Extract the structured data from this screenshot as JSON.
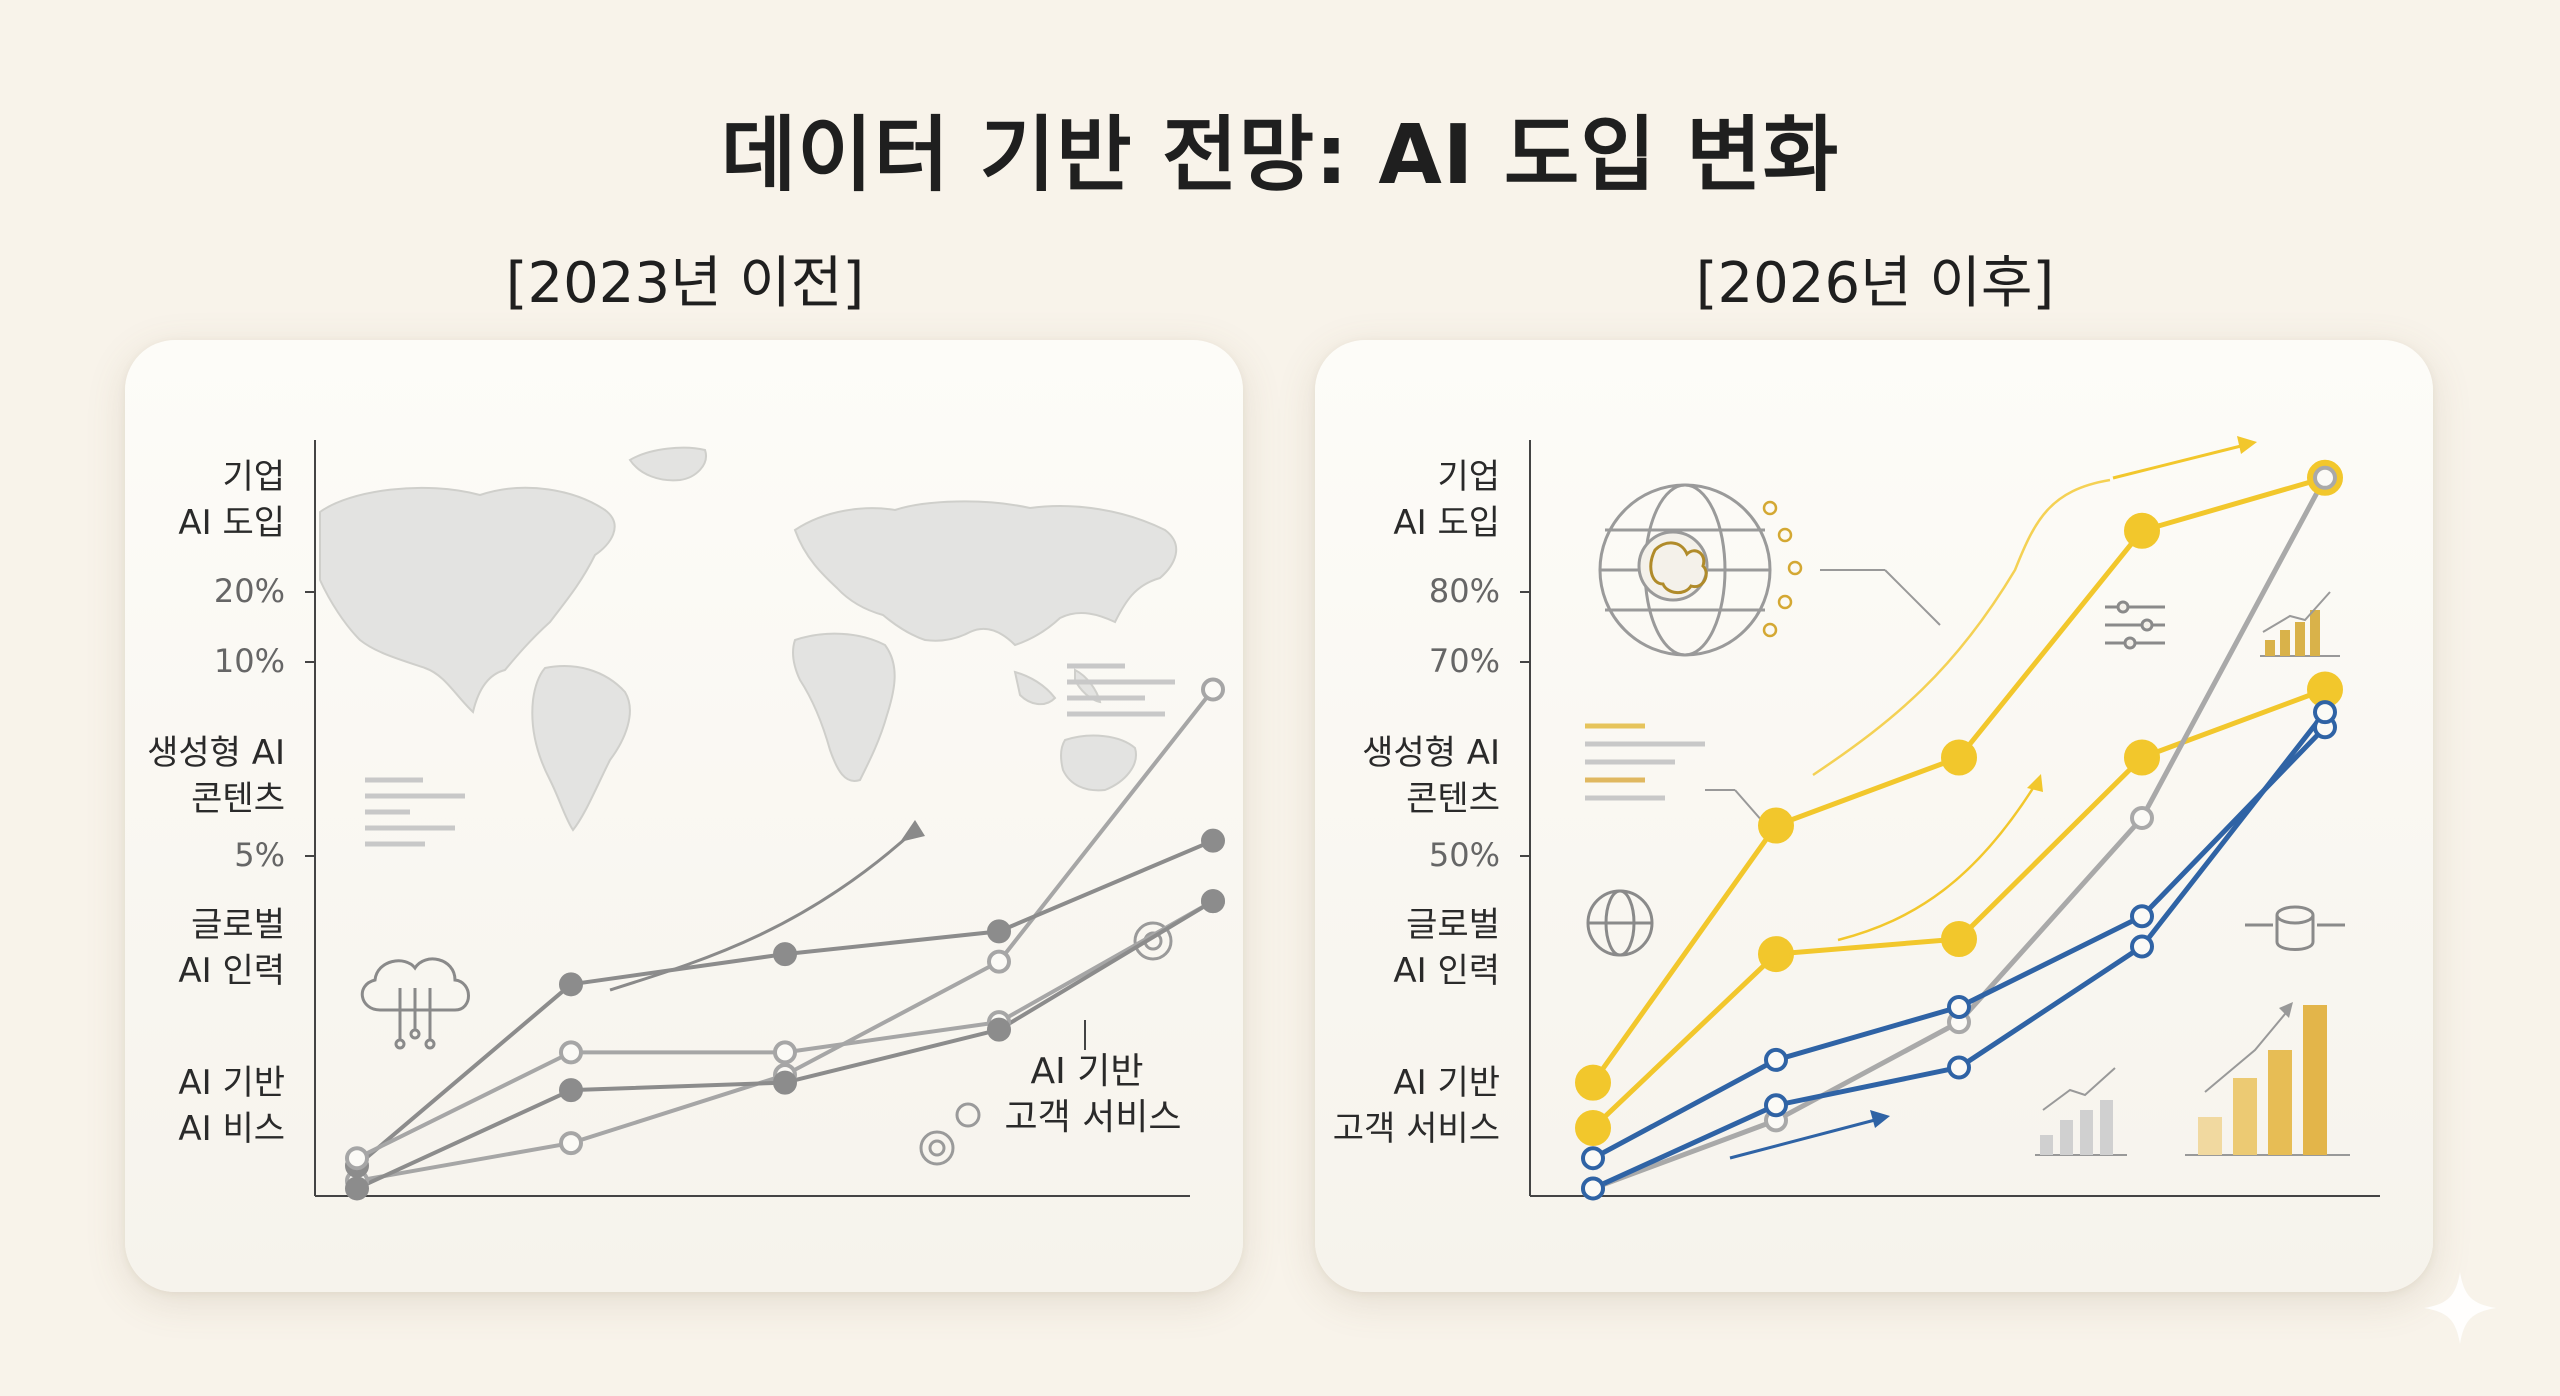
{
  "title": "데이터 기반 전망: AI 도입 변화",
  "chart_data": [
    {
      "type": "line",
      "title": "[2023년 이전]",
      "y_labels": [
        [
          "기업",
          "AI 도입"
        ],
        [
          "생성형 AI",
          "콘텐츠"
        ],
        [
          "글로벌",
          "AI 인력"
        ],
        [
          "AI 기반",
          "AI 비스"
        ]
      ],
      "y_ticks": [
        "20%",
        "10%",
        "5%"
      ],
      "annotation": [
        "AI 기반",
        "고객 서비스"
      ],
      "x": [
        1,
        2,
        3,
        4,
        5
      ],
      "ylim": [
        0,
        100
      ],
      "series": [
        {
          "color": "#a6a6a6",
          "values": [
            2,
            7,
            16,
            31,
            67
          ]
        },
        {
          "color": "#8c8c8c",
          "values": [
            4,
            28,
            32,
            35,
            47
          ]
        },
        {
          "color": "#a6a6a6",
          "values": [
            5,
            19,
            19,
            23,
            39
          ]
        },
        {
          "color": "#8c8c8c",
          "values": [
            1,
            14,
            15,
            22,
            39
          ]
        }
      ],
      "background_map": true
    },
    {
      "type": "line",
      "title": "[2026년 이후]",
      "y_labels": [
        [
          "기업",
          "AI 도입"
        ],
        [
          "생성형 AI",
          "콘텐츠"
        ],
        [
          "글로벌",
          "AI 인력"
        ],
        [
          "AI 기반",
          "고객 서비스"
        ]
      ],
      "y_ticks": [
        "80%",
        "70%",
        "50%"
      ],
      "x": [
        1,
        2,
        3,
        4,
        5
      ],
      "ylim": [
        0,
        100
      ],
      "series": [
        {
          "color": "#f2c72c",
          "values": [
            15,
            49,
            58,
            88,
            95
          ]
        },
        {
          "color": "#f2c72c",
          "values": [
            9,
            32,
            34,
            58,
            67
          ]
        },
        {
          "color": "#a9a9a9",
          "values": [
            1,
            10,
            23,
            50,
            95
          ]
        },
        {
          "color": "#2f63a5",
          "values": [
            5,
            18,
            25,
            37,
            62
          ]
        },
        {
          "color": "#2f63a5",
          "values": [
            1,
            12,
            17,
            33,
            64
          ]
        }
      ],
      "decorative_icons": [
        "brain-globe-icon",
        "sliders-icon",
        "bar-chart-icon",
        "globe-icon",
        "database-icon"
      ]
    }
  ]
}
